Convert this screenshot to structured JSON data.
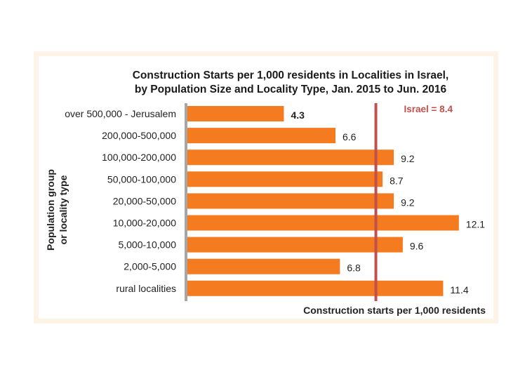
{
  "chart_data": {
    "type": "bar",
    "orientation": "horizontal",
    "title": [
      "Construction Starts per 1,000 residents in Localities in Israel,",
      "by Population Size and Locality Type, Jan. 2015 to Jun. 2016"
    ],
    "xlabel": "Construction starts per 1,000 residents",
    "ylabel": [
      "Population group",
      "or locality type"
    ],
    "categories": [
      "over 500,000 - Jerusalem",
      "200,000-500,000",
      "100,000-200,000",
      "50,000-100,000",
      "20,000-50,000",
      "10,000-20,000",
      "5,000-10,000",
      "2,000-5,000",
      "rural localities"
    ],
    "values": [
      4.3,
      6.6,
      9.2,
      8.7,
      9.2,
      12.1,
      9.6,
      6.8,
      11.4
    ],
    "value_labels": [
      "4.3",
      "6.6",
      "9.2",
      "8.7",
      "9.2",
      "12.1",
      "9.6",
      "6.8",
      "11.4"
    ],
    "bold_value_index": 0,
    "reference_line": {
      "value": 8.4,
      "label": "Israel = 8.4",
      "color": "#c0504d"
    },
    "bar_color": "#f47b20",
    "axis_color": "#a6a6a6",
    "xlim": [
      0,
      12.2
    ]
  }
}
